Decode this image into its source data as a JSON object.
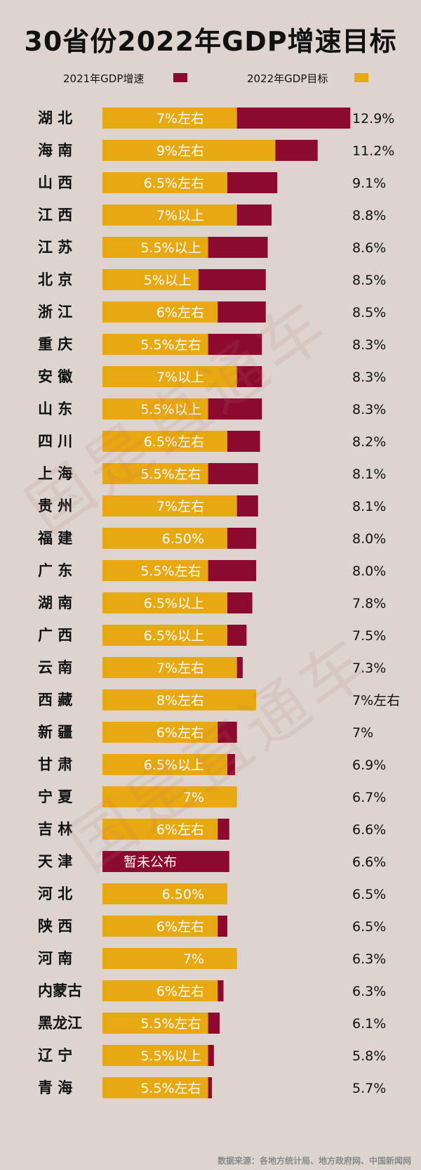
{
  "title": "30省份2022年GDP增速目标",
  "legend": [
    {
      "label": "2021年GDP增速",
      "color": "#8b0a2e"
    },
    {
      "label": "2022年GDP目标",
      "color": "#e8a812"
    }
  ],
  "source": "数据来源：各地方统计局、地方政府网、中国新闻网",
  "watermark": "国是直通车",
  "chart_data": {
    "type": "bar",
    "orientation": "horizontal",
    "x_scale_max": 13.0,
    "series": [
      {
        "name": "2021年GDP增速",
        "color": "#8b0a2e",
        "values": [
          12.9,
          11.2,
          9.1,
          8.8,
          8.6,
          8.5,
          8.5,
          8.3,
          8.3,
          8.3,
          8.2,
          8.1,
          8.1,
          8.0,
          8.0,
          7.8,
          7.5,
          7.3,
          7,
          7,
          6.9,
          6.7,
          6.6,
          6.6,
          6.5,
          6.5,
          6.3,
          6.3,
          6.1,
          5.8,
          5.7
        ]
      },
      {
        "name": "2022年GDP目标",
        "color": "#e8a812",
        "values": [
          7,
          9,
          6.5,
          7,
          5.5,
          5,
          6,
          5.5,
          7,
          5.5,
          6.5,
          5.5,
          7,
          6.5,
          5.5,
          6.5,
          6.5,
          7,
          8,
          6,
          6.5,
          7,
          6,
          null,
          6.5,
          6,
          7,
          6,
          5.5,
          5.5,
          5.5
        ]
      }
    ],
    "rows": [
      {
        "province": "湖  北",
        "target_label": "7%左右",
        "growth_label": "12.9%"
      },
      {
        "province": "海  南",
        "target_label": "9%左右",
        "growth_label": "11.2%"
      },
      {
        "province": "山  西",
        "target_label": "6.5%左右",
        "growth_label": "9.1%"
      },
      {
        "province": "江  西",
        "target_label": "7%以上",
        "growth_label": "8.8%"
      },
      {
        "province": "江  苏",
        "target_label": "5.5%以上",
        "growth_label": "8.6%"
      },
      {
        "province": "北  京",
        "target_label": "5%以上",
        "growth_label": "8.5%"
      },
      {
        "province": "浙  江",
        "target_label": "6%左右",
        "growth_label": "8.5%"
      },
      {
        "province": "重  庆",
        "target_label": "5.5%左右",
        "growth_label": "8.3%"
      },
      {
        "province": "安  徽",
        "target_label": "7%以上",
        "growth_label": "8.3%"
      },
      {
        "province": "山  东",
        "target_label": "5.5%以上",
        "growth_label": "8.3%"
      },
      {
        "province": "四  川",
        "target_label": "6.5%左右",
        "growth_label": "8.2%"
      },
      {
        "province": "上  海",
        "target_label": "5.5%左右",
        "growth_label": "8.1%"
      },
      {
        "province": "贵  州",
        "target_label": "7%左右",
        "growth_label": "8.1%"
      },
      {
        "province": "福  建",
        "target_label": "6.50%",
        "growth_label": "8.0%"
      },
      {
        "province": "广  东",
        "target_label": "5.5%左右",
        "growth_label": "8.0%"
      },
      {
        "province": "湖  南",
        "target_label": "6.5%以上",
        "growth_label": "7.8%"
      },
      {
        "province": "广  西",
        "target_label": "6.5%以上",
        "growth_label": "7.5%"
      },
      {
        "province": "云  南",
        "target_label": "7%左右",
        "growth_label": "7.3%"
      },
      {
        "province": "西  藏",
        "target_label": "8%左右",
        "growth_label": "7%左右"
      },
      {
        "province": "新  疆",
        "target_label": "6%左右",
        "growth_label": "7%"
      },
      {
        "province": "甘  肃",
        "target_label": "6.5%以上",
        "growth_label": "6.9%"
      },
      {
        "province": "宁  夏",
        "target_label": "7%",
        "growth_label": "6.7%"
      },
      {
        "province": "吉  林",
        "target_label": "6%左右",
        "growth_label": "6.6%"
      },
      {
        "province": "天  津",
        "target_label": "暂未公布",
        "growth_label": "6.6%"
      },
      {
        "province": "河  北",
        "target_label": "6.50%",
        "growth_label": "6.5%"
      },
      {
        "province": "陕  西",
        "target_label": "6%左右",
        "growth_label": "6.5%"
      },
      {
        "province": "河  南",
        "target_label": "7%",
        "growth_label": "6.3%"
      },
      {
        "province": "内蒙古",
        "target_label": "6%左右",
        "growth_label": "6.3%"
      },
      {
        "province": "黑龙江",
        "target_label": "5.5%左右",
        "growth_label": "6.1%"
      },
      {
        "province": "辽  宁",
        "target_label": "5.5%以上",
        "growth_label": "5.8%"
      },
      {
        "province": "青  海",
        "target_label": "5.5%左右",
        "growth_label": "5.7%"
      }
    ]
  }
}
